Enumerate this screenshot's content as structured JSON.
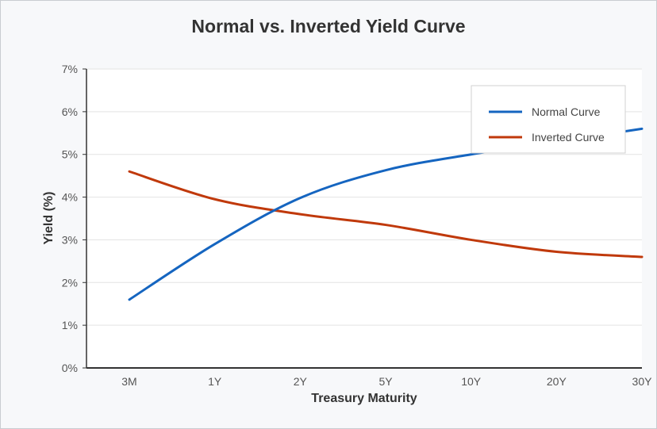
{
  "chart_data": {
    "type": "line",
    "title": "Normal vs. Inverted Yield Curve",
    "xlabel": "Treasury Maturity",
    "ylabel": "Yield (%)",
    "categories": [
      "3M",
      "1Y",
      "2Y",
      "5Y",
      "10Y",
      "20Y",
      "30Y"
    ],
    "y_ticks": [
      "0%",
      "1%",
      "2%",
      "3%",
      "4%",
      "5%",
      "6%",
      "7%"
    ],
    "ylim": [
      0,
      7
    ],
    "grid": true,
    "legend_position": "top-right",
    "series": [
      {
        "name": "Normal Curve",
        "color": "#1565c0",
        "values": [
          1.6,
          2.9,
          3.98,
          4.63,
          5.0,
          5.3,
          5.6
        ]
      },
      {
        "name": "Inverted Curve",
        "color": "#c0390b",
        "values": [
          4.6,
          3.95,
          3.6,
          3.35,
          3.0,
          2.72,
          2.6
        ]
      }
    ]
  }
}
